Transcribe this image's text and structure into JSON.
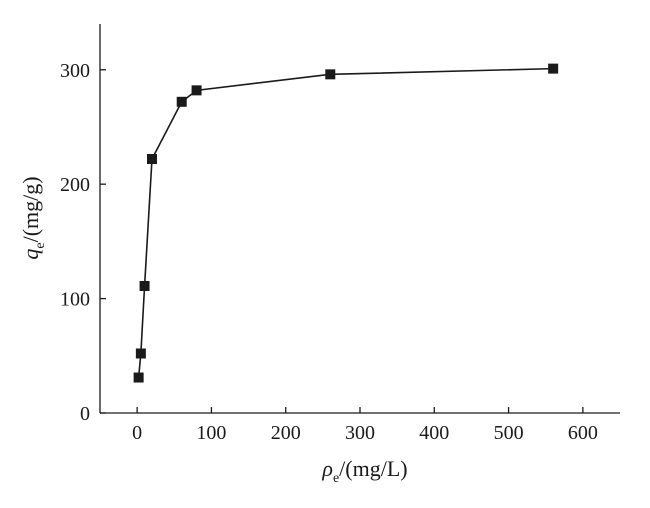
{
  "chart_data": {
    "type": "line",
    "title": "",
    "xlabel": {
      "symbol": "ρ",
      "sub": "e",
      "unit": "/(mg/L)"
    },
    "ylabel": {
      "symbol": "q",
      "sub": "e",
      "unit": "/(mg/g)"
    },
    "xlim": [
      -50,
      650
    ],
    "ylim": [
      0,
      340
    ],
    "xticks": [
      0,
      100,
      200,
      300,
      400,
      500,
      600
    ],
    "yticks": [
      0,
      100,
      200,
      300
    ],
    "grid": false,
    "marker": "square",
    "series": [
      {
        "x": [
          2,
          5,
          10,
          20,
          60,
          80,
          260,
          560
        ],
        "y": [
          31,
          52,
          111,
          222,
          272,
          282,
          296,
          301
        ]
      }
    ]
  }
}
